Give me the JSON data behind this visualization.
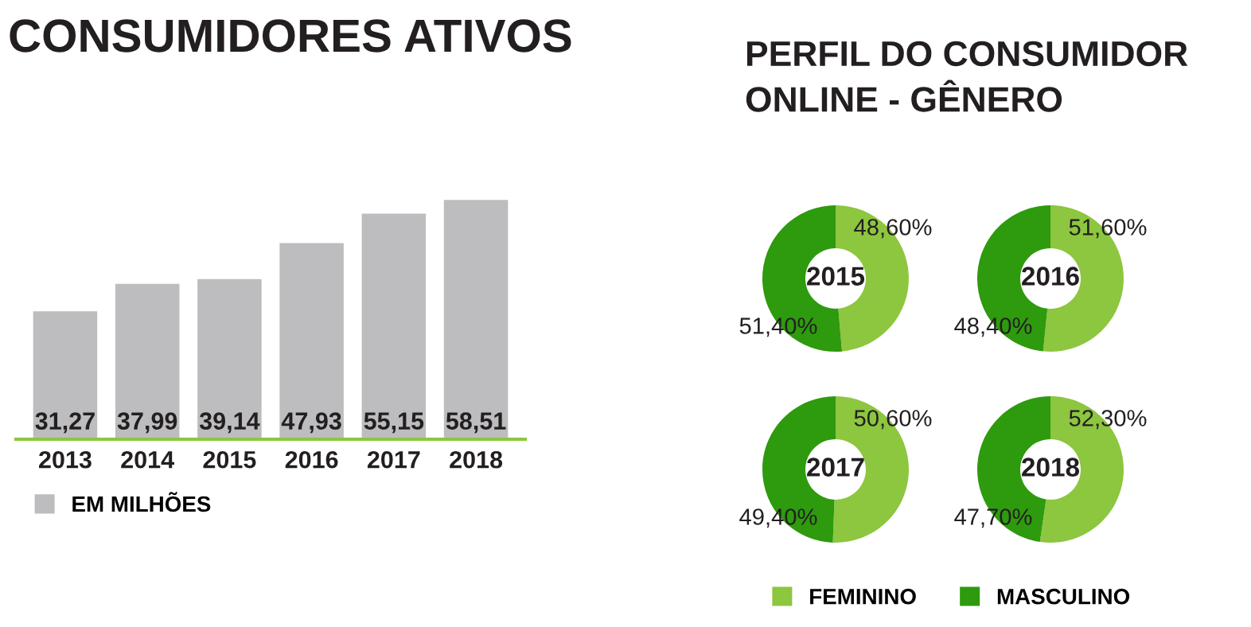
{
  "chart_data": [
    {
      "type": "bar",
      "title": "CONSUMIDORES ATIVOS",
      "categories": [
        "2013",
        "2014",
        "2015",
        "2016",
        "2017",
        "2018"
      ],
      "series": [
        {
          "name": "EM MILHÕES",
          "color": "#bdbdbf",
          "values": [
            31.27,
            37.99,
            39.14,
            47.93,
            55.15,
            58.51
          ],
          "value_labels": [
            "31,27",
            "37,99",
            "39,14",
            "47,93",
            "55,15",
            "58,51"
          ]
        }
      ],
      "legend": "bottom left"
    },
    {
      "type": "donut",
      "title": "2015",
      "subtitle": "PERFIL DO CONSUMIDOR\nONLINE - GÊNERO",
      "categories": [
        "FEMININO",
        "MASCULINO"
      ],
      "values": [
        48.6,
        51.4
      ],
      "value_labels": [
        "48,60%",
        "51,40%"
      ],
      "colors": [
        "#8dc63f",
        "#2e9a0e"
      ],
      "legend": "bottom"
    },
    {
      "type": "donut",
      "title": "2016",
      "categories": [
        null,
        null
      ],
      "values": [
        51.6,
        48.4
      ],
      "value_labels": [
        "51,60%",
        "48,40%"
      ],
      "colors": [
        "#8dc63f",
        "#2e9a0e"
      ]
    },
    {
      "type": "donut",
      "title": "2017",
      "categories": [
        null,
        null
      ],
      "values": [
        50.6,
        49.4
      ],
      "value_labels": [
        "50,60%",
        "49,40%"
      ],
      "colors": [
        "#8dc63f",
        "#2e9a0e"
      ]
    },
    {
      "type": "donut",
      "title": "2018",
      "categories": [
        null,
        null
      ],
      "values": [
        52.3,
        47.7
      ],
      "value_labels": [
        "52,30%",
        "47,70%"
      ],
      "colors": [
        "#8dc63f",
        "#2e9a0e"
      ]
    }
  ]
}
